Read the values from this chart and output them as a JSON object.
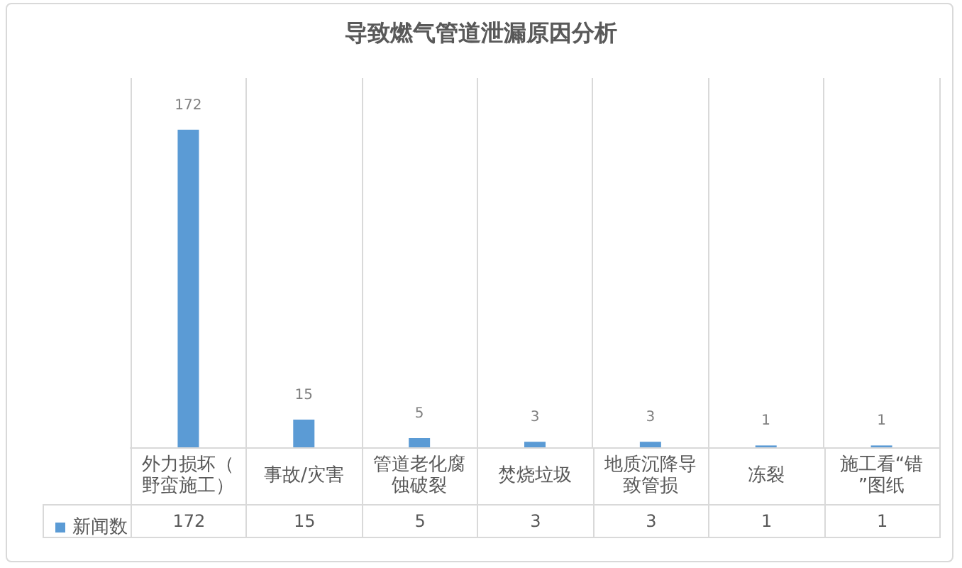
{
  "chart_data": {
    "type": "bar",
    "title": "导致燃气管道泄漏原因分析",
    "categories": [
      "外力损坏（野蛮施工）",
      "事故/灾害",
      "管道老化腐蚀破裂",
      "焚烧垃圾",
      "地质沉降导致管损",
      "冻裂",
      "施工看“错”图纸"
    ],
    "series": [
      {
        "name": "新闻数",
        "color": "#5b9bd5",
        "values": [
          172,
          15,
          5,
          3,
          3,
          1,
          1
        ]
      }
    ],
    "data_labels": true,
    "grid": "x",
    "legend": "bottom left",
    "tick_labels": "x",
    "annotations": [
      {
        "text": "172",
        "x": "外力损坏（野蛮施工）",
        "y": 172
      },
      {
        "text": "15",
        "x": "事故/灾害",
        "y": 15
      },
      {
        "text": "5",
        "x": "管道老化腐蚀破裂",
        "y": 5
      },
      {
        "text": "3",
        "x": "焚烧垃圾",
        "y": 3
      },
      {
        "text": "3",
        "x": "地质沉降导致管损",
        "y": 3
      },
      {
        "text": "1",
        "x": "冻裂",
        "y": 1
      },
      {
        "text": "1",
        "x": "施工看“错”图纸",
        "y": 1
      }
    ]
  }
}
